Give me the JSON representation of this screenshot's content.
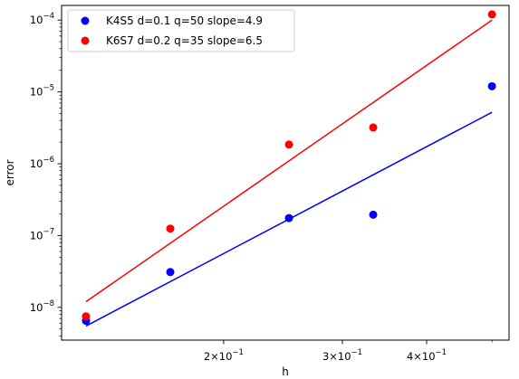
{
  "chart_data": {
    "type": "scatter",
    "xscale": "log",
    "yscale": "log",
    "xlabel": "h",
    "ylabel": "error",
    "xlim": [
      0.115,
      0.53
    ],
    "ylim": [
      3.5e-09,
      0.00016
    ],
    "x_ticks": [
      {
        "value": 0.2,
        "mantissa": "2",
        "exponent": "−1"
      },
      {
        "value": 0.3,
        "mantissa": "3",
        "exponent": "−1"
      },
      {
        "value": 0.4,
        "mantissa": "4",
        "exponent": "−1"
      }
    ],
    "y_ticks": [
      {
        "value": 1e-08,
        "exponent": "−8"
      },
      {
        "value": 1e-07,
        "exponent": "−7"
      },
      {
        "value": 1e-06,
        "exponent": "−6"
      },
      {
        "value": 1e-05,
        "exponent": "−5"
      },
      {
        "value": 0.0001,
        "exponent": "−4"
      }
    ],
    "tick_base": "10",
    "grid": false,
    "legend_position": "top-left",
    "series": [
      {
        "name": "K4S5 d=0.1 q=50 slope=4.9",
        "color": "#0000ff",
        "x": [
          0.125,
          0.1667,
          0.25,
          0.3333,
          0.5
        ],
        "y": [
          6.5e-09,
          3.1e-08,
          1.75e-07,
          1.95e-07,
          1.2e-05
        ],
        "fit": {
          "x": [
            0.125,
            0.5
          ],
          "y": [
            5.5e-09,
            5.2e-06
          ]
        }
      },
      {
        "name": "K6S7 d=0.2 q=35 slope=6.5",
        "color": "#ff0000",
        "x": [
          0.125,
          0.1667,
          0.25,
          0.3333,
          0.5
        ],
        "y": [
          7.5e-09,
          1.25e-07,
          1.85e-06,
          3.2e-06,
          0.00012
        ],
        "fit": {
          "x": [
            0.125,
            0.5
          ],
          "y": [
            1.2e-08,
            0.0001
          ]
        }
      }
    ]
  }
}
